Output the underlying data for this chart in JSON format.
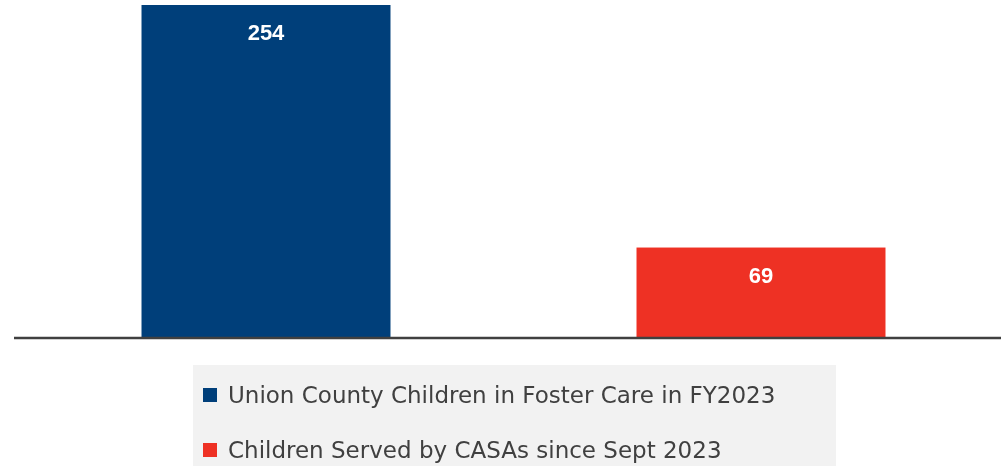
{
  "chart_data": {
    "type": "bar",
    "stacked": true,
    "categories": [
      null,
      null
    ],
    "data_labels": true,
    "legend": "bottom",
    "series": [
      {
        "name": "Union County Children in Foster Care in FY2023",
        "color": "#003f7a",
        "values": [
          254,
          null
        ]
      },
      {
        "name": "Children Served by CASAs since Sept 2023",
        "color": "#ee3124",
        "values": [
          null,
          69
        ]
      }
    ]
  }
}
